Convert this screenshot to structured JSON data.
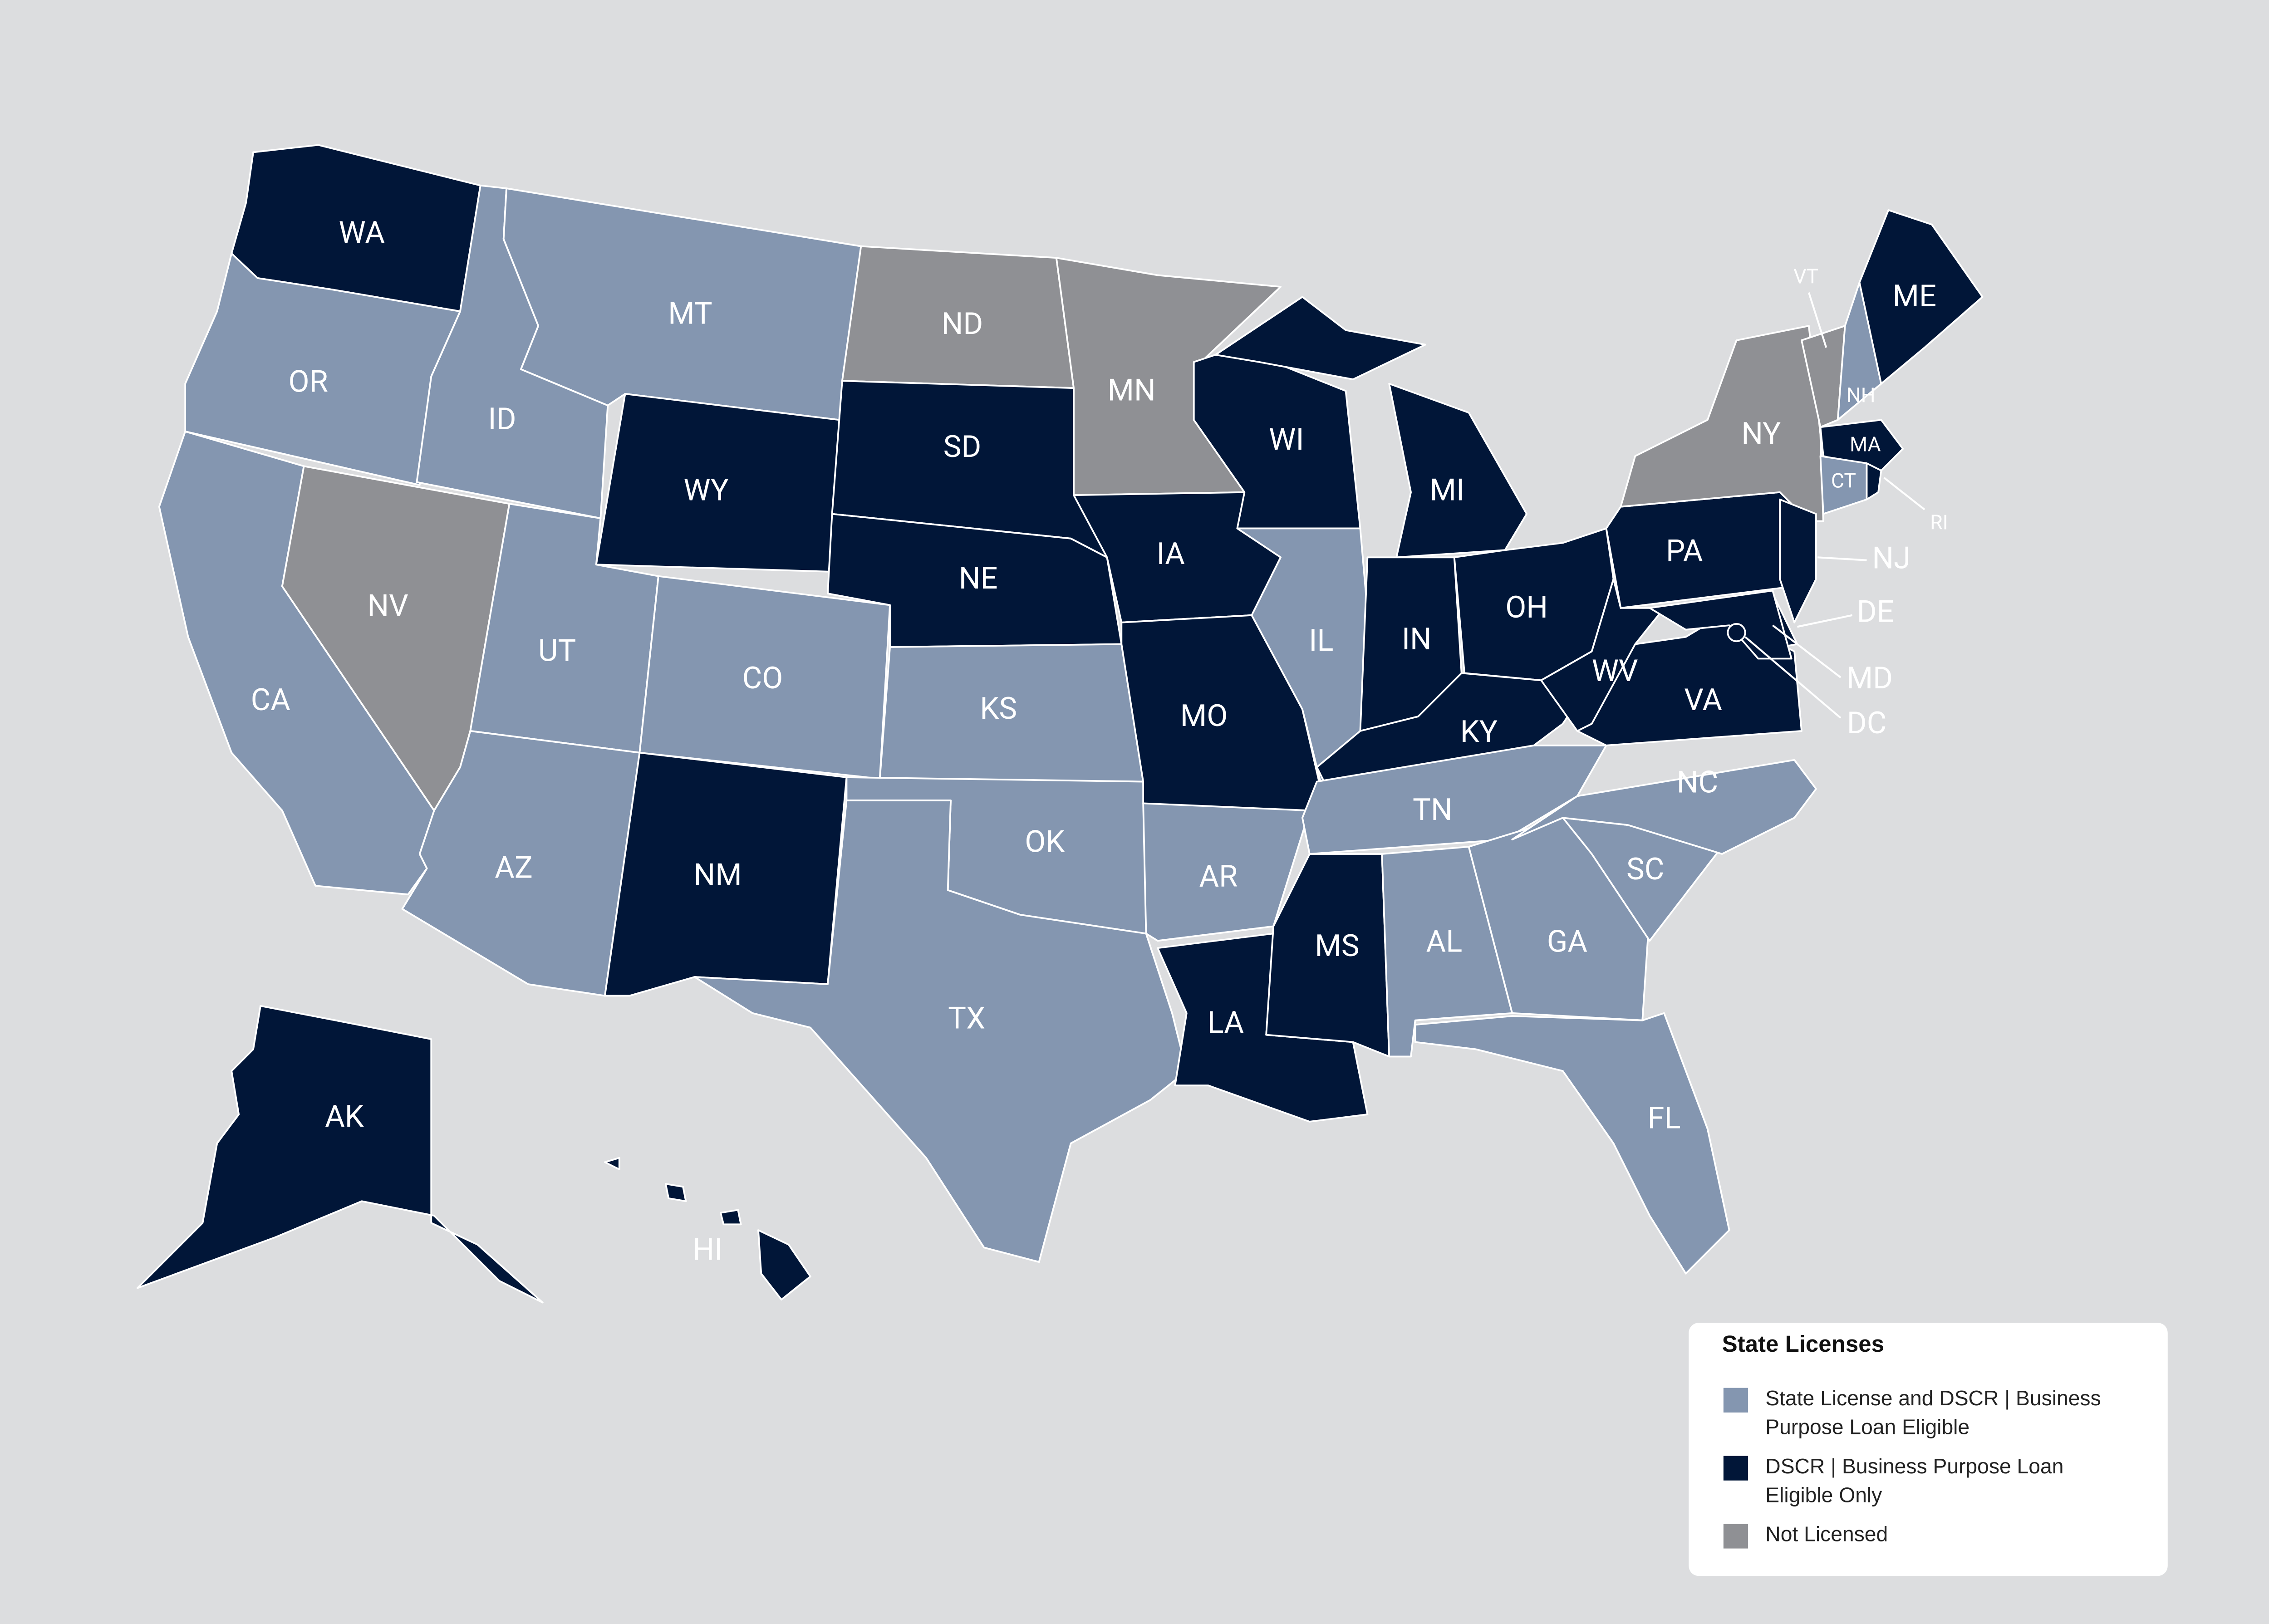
{
  "map": {
    "states": [
      {
        "label": "WA",
        "color": "#011638"
      },
      {
        "label": "OR",
        "color": "#8496b0"
      },
      {
        "label": "CA",
        "color": "#8496b0"
      },
      {
        "label": "NV",
        "color": "#8f9094"
      },
      {
        "label": "ID",
        "color": "#8496b0"
      },
      {
        "label": "MT",
        "color": "#8496b0"
      },
      {
        "label": "WY",
        "color": "#011638"
      },
      {
        "label": "UT",
        "color": "#8496b0"
      },
      {
        "label": "CO",
        "color": "#8496b0"
      },
      {
        "label": "AZ",
        "color": "#8496b0"
      },
      {
        "label": "NM",
        "color": "#011638"
      },
      {
        "label": "ND",
        "color": "#8f9094"
      },
      {
        "label": "SD",
        "color": "#011638"
      },
      {
        "label": "NE",
        "color": "#011638"
      },
      {
        "label": "KS",
        "color": "#8496b0"
      },
      {
        "label": "OK",
        "color": "#8496b0"
      },
      {
        "label": "TX",
        "color": "#8496b0"
      },
      {
        "label": "MN",
        "color": "#8f9094"
      },
      {
        "label": "IA",
        "color": "#011638"
      },
      {
        "label": "MO",
        "color": "#011638"
      },
      {
        "label": "AR",
        "color": "#8496b0"
      },
      {
        "label": "LA",
        "color": "#011638"
      },
      {
        "label": "WI",
        "color": "#011638"
      },
      {
        "label": "IL",
        "color": "#8496b0"
      },
      {
        "label": "MI",
        "color": "#011638"
      },
      {
        "label": "IN",
        "color": "#011638"
      },
      {
        "label": "OH",
        "color": "#011638"
      },
      {
        "label": "KY",
        "color": "#011638"
      },
      {
        "label": "TN",
        "color": "#8496b0"
      },
      {
        "label": "MS",
        "color": "#011638"
      },
      {
        "label": "AL",
        "color": "#8496b0"
      },
      {
        "label": "GA",
        "color": "#8496b0"
      },
      {
        "label": "FL",
        "color": "#8496b0"
      },
      {
        "label": "SC",
        "color": "#8496b0"
      },
      {
        "label": "NC",
        "color": "#8496b0"
      },
      {
        "label": "VA",
        "color": "#011638"
      },
      {
        "label": "WV",
        "color": "#011638"
      },
      {
        "label": "PA",
        "color": "#011638"
      },
      {
        "label": "NY",
        "color": "#8f9094"
      },
      {
        "label": "NJ",
        "color": "#011638"
      },
      {
        "label": "DE",
        "color": "#011638"
      },
      {
        "label": "MD",
        "color": "#011638"
      },
      {
        "label": "DC",
        "color": "#011638"
      },
      {
        "label": "VT",
        "color": "#8f9094"
      },
      {
        "label": "NH",
        "color": "#8496b0"
      },
      {
        "label": "ME",
        "color": "#011638"
      },
      {
        "label": "MA",
        "color": "#011638"
      },
      {
        "label": "CT",
        "color": "#8496b0"
      },
      {
        "label": "RI",
        "color": "#011638"
      },
      {
        "label": "AK",
        "color": "#011638"
      },
      {
        "label": "HI",
        "color": "#011638"
      }
    ]
  },
  "legend": {
    "title": "State Licenses",
    "items": [
      {
        "label": "State License and DSCR | Business Purpose Loan Eligible",
        "color": "#8496b0"
      },
      {
        "label": "DSCR | Business Purpose Loan Eligible Only",
        "color": "#011638"
      },
      {
        "label": "Not Licensed",
        "color": "#8f9094"
      }
    ]
  }
}
